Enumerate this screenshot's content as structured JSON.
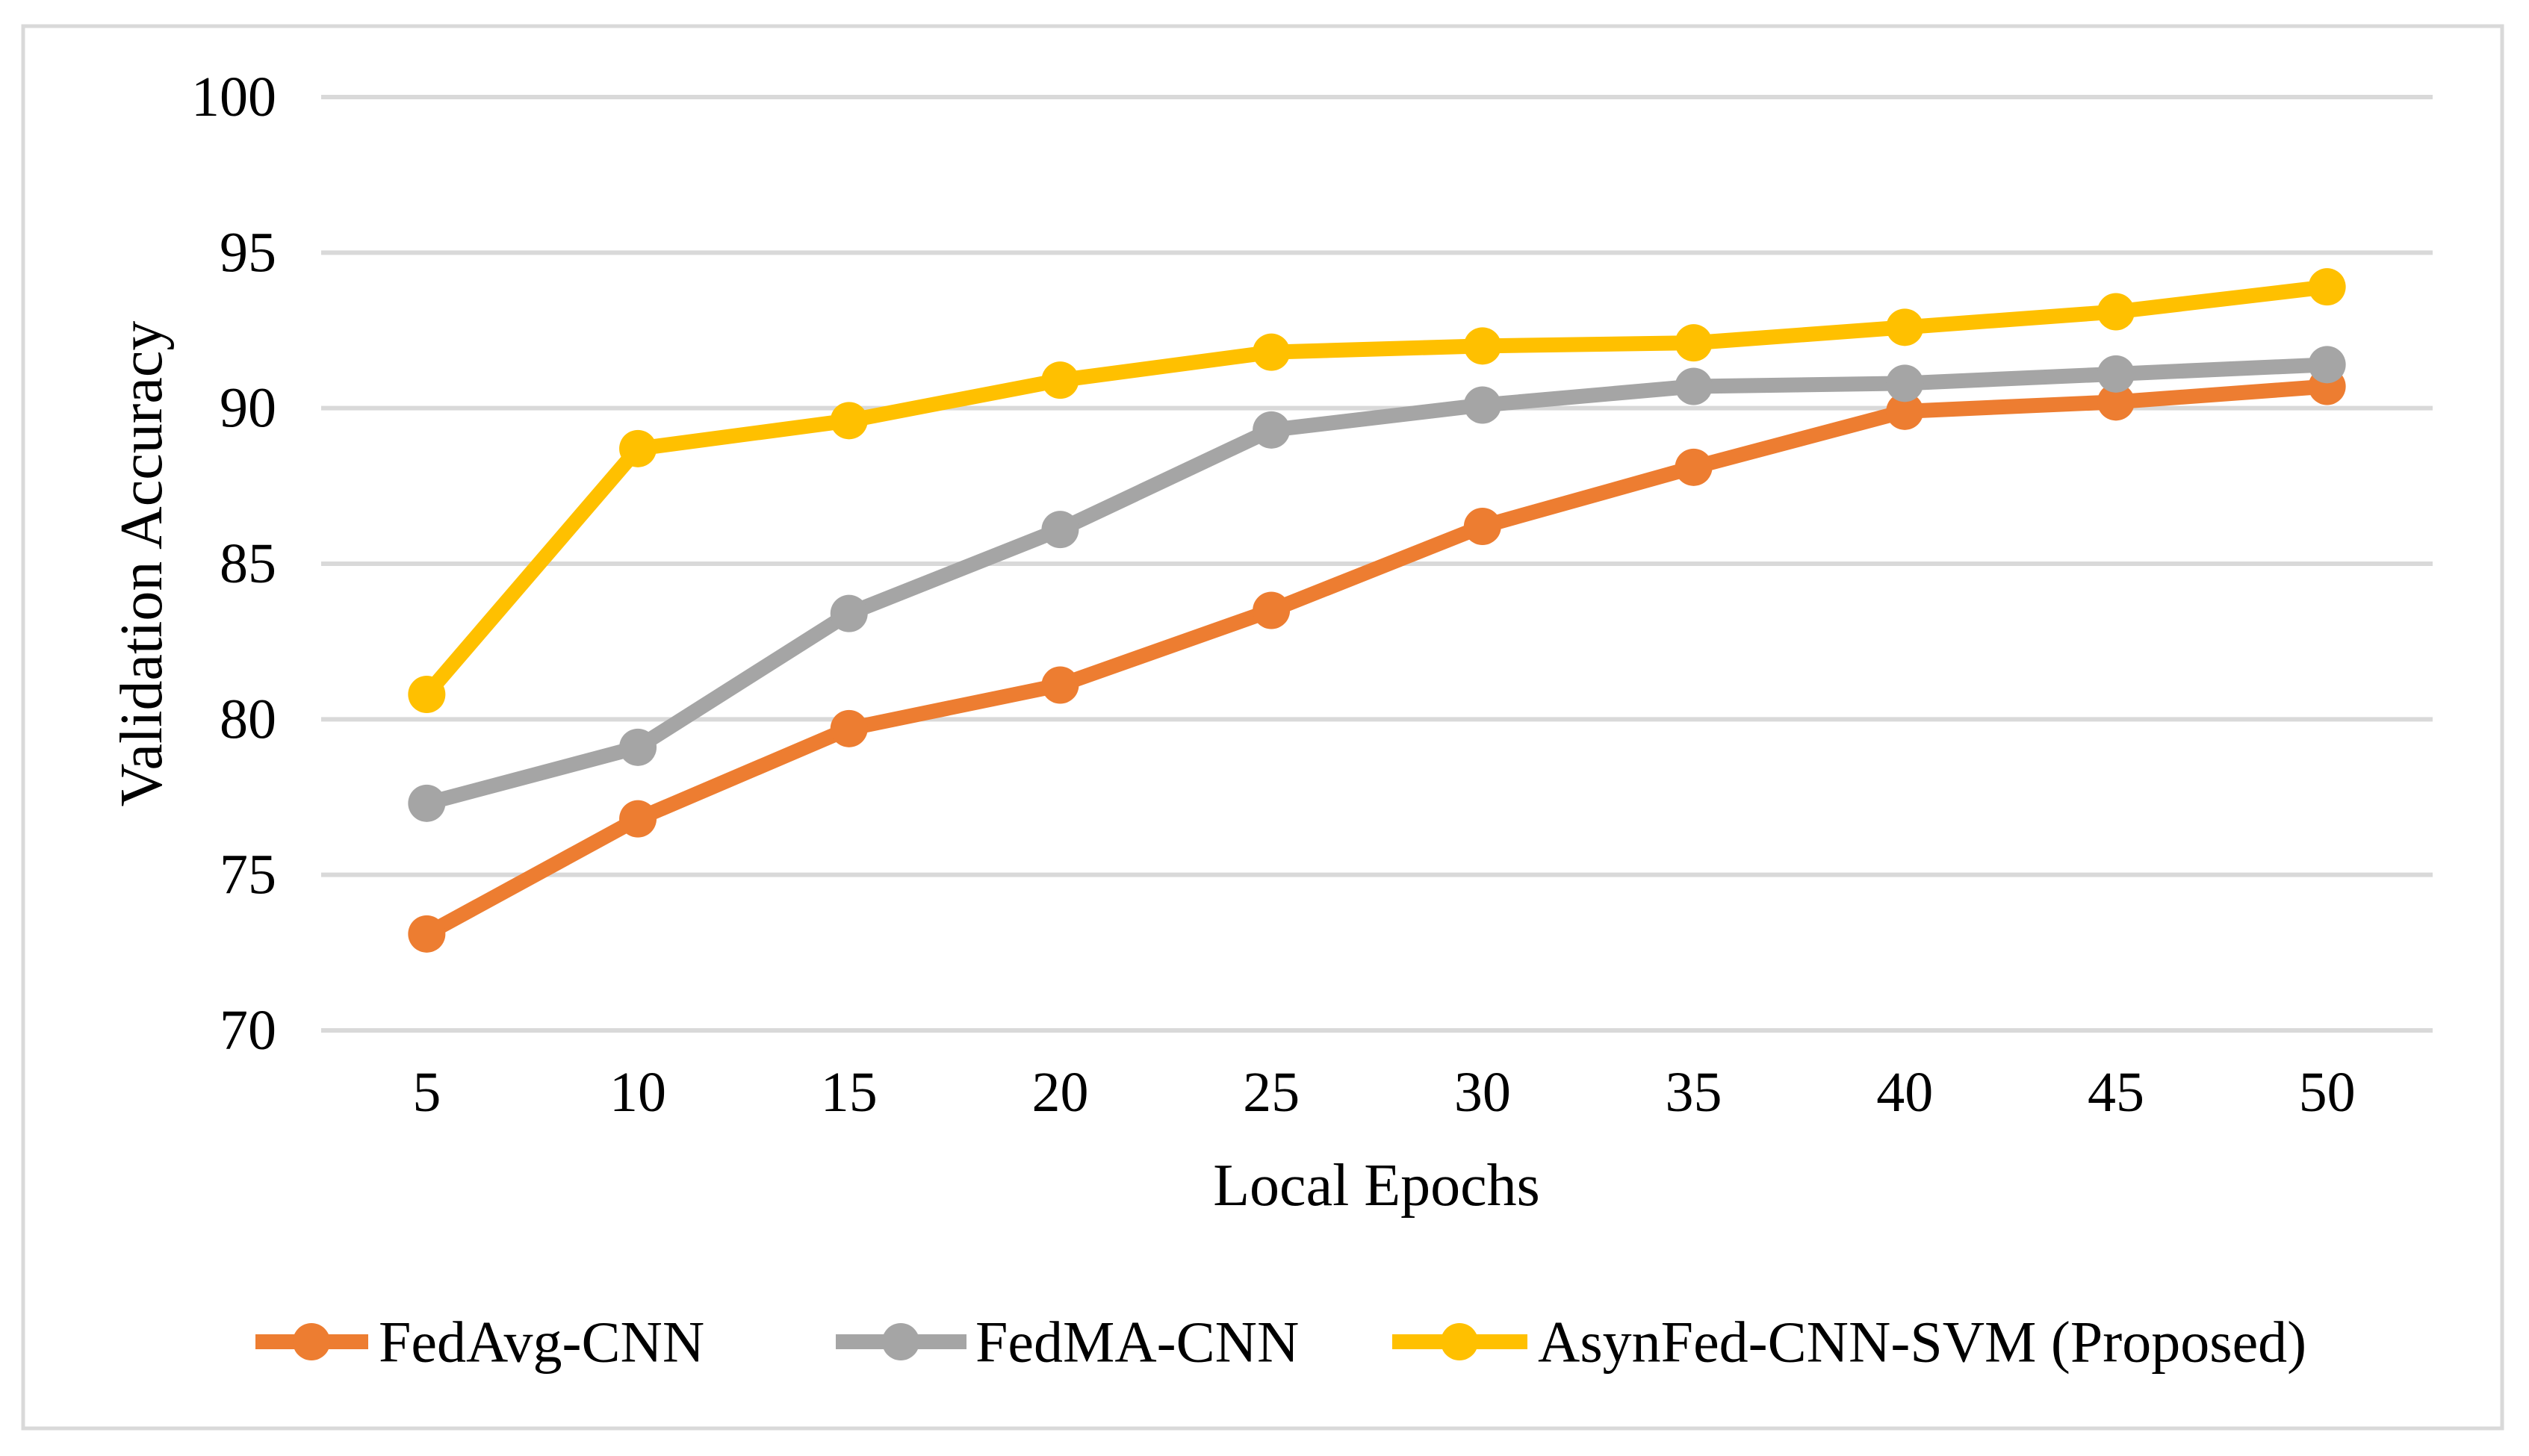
{
  "chart_data": {
    "type": "line",
    "title": "",
    "xlabel": "Local Epochs",
    "ylabel": "Validation Accuracy",
    "x": [
      5,
      10,
      15,
      20,
      25,
      30,
      35,
      40,
      45,
      50
    ],
    "xlim": [
      0,
      55
    ],
    "ylim": [
      70,
      100
    ],
    "yticks": [
      70,
      75,
      80,
      85,
      90,
      95,
      100
    ],
    "grid": true,
    "legend_position": "bottom",
    "marker_style": "circle",
    "series": [
      {
        "name": "FedAvg-CNN",
        "color": "#ED7D31",
        "values": [
          73.1,
          76.8,
          79.7,
          81.1,
          83.5,
          86.2,
          88.1,
          89.9,
          90.2,
          90.7
        ]
      },
      {
        "name": "FedMA-CNN",
        "color": "#A5A5A5",
        "values": [
          77.3,
          79.1,
          83.4,
          86.1,
          89.3,
          90.1,
          90.7,
          90.8,
          91.1,
          91.4
        ]
      },
      {
        "name": "AsynFed-CNN-SVM (Proposed)",
        "color": "#FFC000",
        "values": [
          80.8,
          88.7,
          89.6,
          90.9,
          91.8,
          92.0,
          92.1,
          92.6,
          93.1,
          93.9
        ]
      }
    ],
    "gridline_color": "#D9D9D9",
    "border_color": "#D9D9D9",
    "text_color": "#000000",
    "background_color": "#FFFFFF"
  }
}
